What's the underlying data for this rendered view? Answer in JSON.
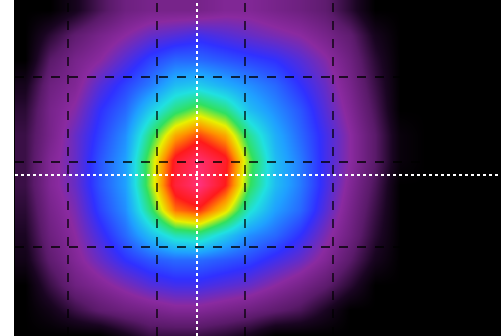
{
  "chart_data": {
    "type": "heatmap",
    "x": [
      10,
      35,
      60,
      85,
      110,
      135,
      160,
      185,
      210,
      235,
      260,
      285,
      310,
      335,
      360,
      385,
      410
    ],
    "y": [
      10,
      35,
      60,
      85,
      110,
      135,
      160,
      185,
      210,
      235,
      260,
      285,
      310,
      335
    ],
    "cells": [
      [
        0,
        0,
        5,
        12,
        18,
        20,
        20,
        20,
        22,
        22,
        20,
        18,
        15,
        8,
        0,
        0,
        0
      ],
      [
        0,
        8,
        15,
        20,
        24,
        28,
        30,
        32,
        30,
        28,
        26,
        24,
        20,
        15,
        5,
        0,
        0
      ],
      [
        0,
        14,
        20,
        24,
        30,
        36,
        40,
        40,
        38,
        36,
        34,
        30,
        25,
        18,
        8,
        0,
        0
      ],
      [
        5,
        18,
        22,
        30,
        36,
        42,
        50,
        52,
        48,
        44,
        40,
        34,
        28,
        20,
        10,
        0,
        0
      ],
      [
        8,
        20,
        25,
        34,
        40,
        52,
        62,
        68,
        62,
        50,
        44,
        38,
        30,
        22,
        12,
        0,
        0
      ],
      [
        10,
        20,
        28,
        36,
        44,
        62,
        78,
        85,
        78,
        60,
        48,
        40,
        32,
        24,
        14,
        2,
        0
      ],
      [
        10,
        22,
        28,
        38,
        46,
        68,
        90,
        98,
        90,
        66,
        50,
        42,
        32,
        24,
        14,
        2,
        0
      ],
      [
        10,
        22,
        28,
        38,
        46,
        68,
        92,
        100,
        88,
        64,
        50,
        42,
        32,
        22,
        12,
        0,
        0
      ],
      [
        8,
        20,
        26,
        36,
        44,
        62,
        82,
        86,
        74,
        56,
        46,
        40,
        30,
        20,
        10,
        0,
        0
      ],
      [
        6,
        18,
        24,
        32,
        40,
        50,
        58,
        60,
        52,
        44,
        40,
        34,
        26,
        18,
        8,
        0,
        0
      ],
      [
        4,
        15,
        22,
        28,
        34,
        38,
        40,
        40,
        38,
        36,
        32,
        28,
        22,
        14,
        5,
        0,
        0
      ],
      [
        0,
        10,
        18,
        22,
        26,
        30,
        32,
        32,
        30,
        28,
        24,
        20,
        15,
        8,
        0,
        0,
        0
      ],
      [
        0,
        4,
        10,
        15,
        18,
        20,
        22,
        22,
        20,
        18,
        15,
        12,
        6,
        0,
        0,
        0,
        0
      ],
      [
        0,
        0,
        0,
        0,
        5,
        10,
        10,
        10,
        8,
        5,
        0,
        0,
        0,
        0,
        0,
        0,
        0
      ]
    ],
    "zlim": [
      0,
      100
    ],
    "xlim": [
      0,
      486
    ],
    "ylim": [
      336,
      0
    ],
    "xticks": [
      53,
      142,
      230,
      318
    ],
    "yticks": [
      77,
      162,
      247
    ],
    "grid": true,
    "tick_labels": false,
    "crosshair": {
      "x": 182,
      "y": 175
    }
  }
}
